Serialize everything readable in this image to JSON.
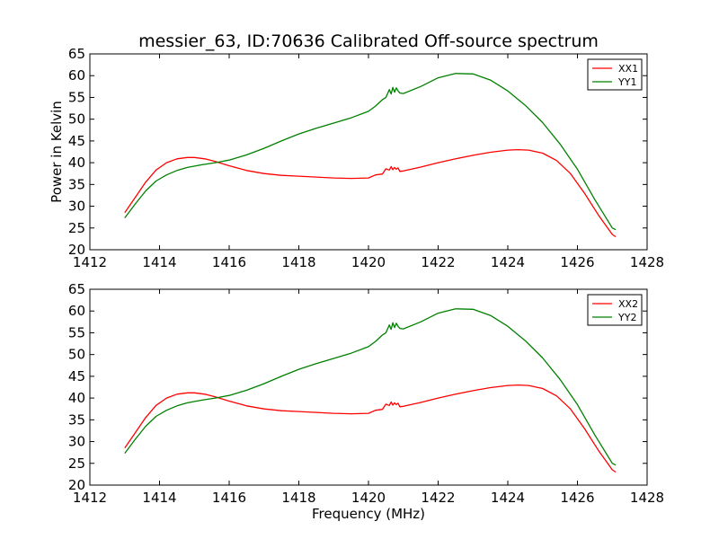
{
  "chart_data": [
    {
      "type": "line",
      "title": "messier_63, ID:70636 Calibrated Off-source spectrum",
      "xlabel": "",
      "ylabel": "Power in Kelvin",
      "xlim": [
        1412,
        1428
      ],
      "ylim": [
        20,
        65
      ],
      "xticks": [
        "1412",
        "1414",
        "1416",
        "1418",
        "1420",
        "1422",
        "1424",
        "1426",
        "1428"
      ],
      "yticks": [
        "20",
        "25",
        "30",
        "35",
        "40",
        "45",
        "50",
        "55",
        "60",
        "65"
      ],
      "legend": "top-right",
      "grid": false,
      "series": [
        {
          "name": "XX1",
          "color": "#ff0000",
          "x": [
            1413.0,
            1413.3,
            1413.6,
            1413.9,
            1414.2,
            1414.5,
            1414.8,
            1415.0,
            1415.3,
            1415.6,
            1416.0,
            1416.5,
            1417.0,
            1417.5,
            1418.0,
            1418.5,
            1419.0,
            1419.5,
            1420.0,
            1420.2,
            1420.4,
            1420.5,
            1420.6,
            1420.65,
            1420.7,
            1420.75,
            1420.8,
            1420.85,
            1420.9,
            1421.0,
            1421.5,
            1422.0,
            1422.5,
            1423.0,
            1423.5,
            1424.0,
            1424.3,
            1424.6,
            1425.0,
            1425.4,
            1425.8,
            1426.2,
            1426.6,
            1427.0,
            1427.1
          ],
          "values": [
            28.5,
            32.0,
            35.5,
            38.3,
            40.0,
            40.9,
            41.2,
            41.2,
            40.9,
            40.3,
            39.3,
            38.2,
            37.5,
            37.1,
            36.9,
            36.7,
            36.5,
            36.4,
            36.5,
            37.2,
            37.4,
            38.6,
            38.3,
            39.1,
            38.4,
            38.9,
            38.5,
            38.8,
            38.0,
            38.1,
            39.0,
            40.0,
            40.9,
            41.7,
            42.4,
            42.9,
            43.0,
            42.9,
            42.2,
            40.5,
            37.5,
            33.0,
            28.0,
            23.5,
            23.0
          ]
        },
        {
          "name": "YY1",
          "color": "#008000",
          "x": [
            1413.0,
            1413.3,
            1413.6,
            1413.9,
            1414.2,
            1414.5,
            1414.8,
            1415.2,
            1415.6,
            1416.0,
            1416.5,
            1417.0,
            1417.5,
            1418.0,
            1418.5,
            1419.0,
            1419.5,
            1420.0,
            1420.2,
            1420.4,
            1420.5,
            1420.6,
            1420.65,
            1420.7,
            1420.75,
            1420.8,
            1420.85,
            1420.9,
            1421.0,
            1421.5,
            1422.0,
            1422.5,
            1423.0,
            1423.5,
            1424.0,
            1424.5,
            1425.0,
            1425.5,
            1426.0,
            1426.5,
            1427.0,
            1427.1
          ],
          "values": [
            27.3,
            30.5,
            33.5,
            35.8,
            37.2,
            38.2,
            38.9,
            39.5,
            40.0,
            40.6,
            41.8,
            43.3,
            45.0,
            46.6,
            47.9,
            49.1,
            50.3,
            51.8,
            53.0,
            54.5,
            55.0,
            56.8,
            55.8,
            57.3,
            56.2,
            57.2,
            56.5,
            56.0,
            55.9,
            57.5,
            59.5,
            60.5,
            60.4,
            59.0,
            56.5,
            53.2,
            49.2,
            44.3,
            38.5,
            31.5,
            25.0,
            24.6
          ]
        }
      ]
    },
    {
      "type": "line",
      "title": "",
      "xlabel": "Frequency (MHz)",
      "ylabel": "",
      "xlim": [
        1412,
        1428
      ],
      "ylim": [
        20,
        65
      ],
      "xticks": [
        "1412",
        "1414",
        "1416",
        "1418",
        "1420",
        "1422",
        "1424",
        "1426",
        "1428"
      ],
      "yticks": [
        "20",
        "25",
        "30",
        "35",
        "40",
        "45",
        "50",
        "55",
        "60",
        "65"
      ],
      "legend": "top-right",
      "grid": false,
      "series": [
        {
          "name": "XX2",
          "color": "#ff0000",
          "x": [
            1413.0,
            1413.3,
            1413.6,
            1413.9,
            1414.2,
            1414.5,
            1414.8,
            1415.0,
            1415.3,
            1415.6,
            1416.0,
            1416.5,
            1417.0,
            1417.5,
            1418.0,
            1418.5,
            1419.0,
            1419.5,
            1420.0,
            1420.2,
            1420.4,
            1420.5,
            1420.6,
            1420.65,
            1420.7,
            1420.75,
            1420.8,
            1420.85,
            1420.9,
            1421.0,
            1421.5,
            1422.0,
            1422.5,
            1423.0,
            1423.5,
            1424.0,
            1424.3,
            1424.6,
            1425.0,
            1425.4,
            1425.8,
            1426.2,
            1426.6,
            1427.0,
            1427.1
          ],
          "values": [
            28.5,
            32.0,
            35.5,
            38.3,
            40.0,
            40.9,
            41.2,
            41.2,
            40.9,
            40.3,
            39.3,
            38.2,
            37.5,
            37.1,
            36.9,
            36.7,
            36.5,
            36.4,
            36.5,
            37.2,
            37.4,
            38.6,
            38.3,
            39.1,
            38.4,
            38.9,
            38.5,
            38.8,
            38.0,
            38.1,
            39.0,
            40.0,
            40.9,
            41.7,
            42.4,
            42.9,
            43.0,
            42.9,
            42.2,
            40.5,
            37.5,
            33.0,
            28.0,
            23.5,
            23.0
          ]
        },
        {
          "name": "YY2",
          "color": "#008000",
          "x": [
            1413.0,
            1413.3,
            1413.6,
            1413.9,
            1414.2,
            1414.5,
            1414.8,
            1415.2,
            1415.6,
            1416.0,
            1416.5,
            1417.0,
            1417.5,
            1418.0,
            1418.5,
            1419.0,
            1419.5,
            1420.0,
            1420.2,
            1420.4,
            1420.5,
            1420.6,
            1420.65,
            1420.7,
            1420.75,
            1420.8,
            1420.85,
            1420.9,
            1421.0,
            1421.5,
            1422.0,
            1422.5,
            1423.0,
            1423.5,
            1424.0,
            1424.5,
            1425.0,
            1425.5,
            1426.0,
            1426.5,
            1427.0,
            1427.1
          ],
          "values": [
            27.3,
            30.5,
            33.5,
            35.8,
            37.2,
            38.2,
            38.9,
            39.5,
            40.0,
            40.6,
            41.8,
            43.3,
            45.0,
            46.6,
            47.9,
            49.1,
            50.3,
            51.8,
            53.0,
            54.5,
            55.0,
            56.8,
            55.8,
            57.3,
            56.2,
            57.2,
            56.5,
            56.0,
            55.9,
            57.5,
            59.5,
            60.5,
            60.4,
            59.0,
            56.5,
            53.2,
            49.2,
            44.3,
            38.5,
            31.5,
            25.0,
            24.6
          ]
        }
      ]
    }
  ]
}
